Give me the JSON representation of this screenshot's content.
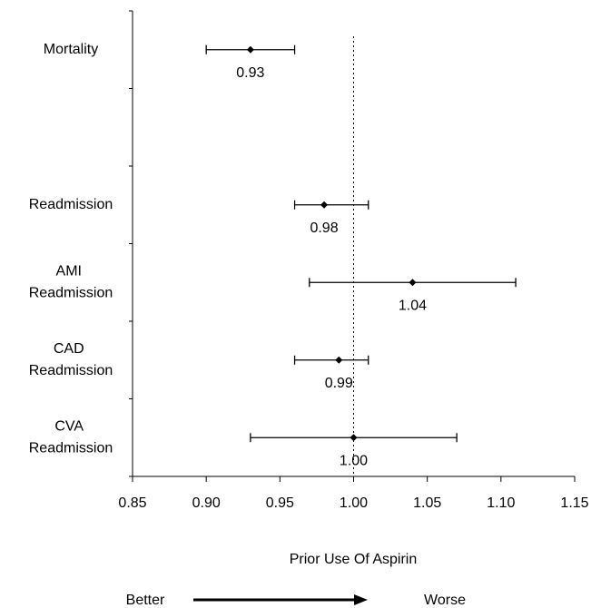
{
  "chart_data": {
    "type": "forest",
    "categories": [
      "Mortality",
      null,
      "Readmission",
      "AMI Readmission",
      "CAD Readmission",
      "CVA Readmission"
    ],
    "values": [
      0.93,
      null,
      0.98,
      1.04,
      0.99,
      1.0
    ],
    "value_labels": [
      "0.93",
      null,
      "0.98",
      "1.04",
      "0.99",
      "1.00"
    ],
    "low": [
      0.9,
      null,
      0.96,
      0.97,
      0.96,
      0.93
    ],
    "high": [
      0.96,
      null,
      1.01,
      1.11,
      1.01,
      1.07
    ],
    "color": "#000000",
    "xlim": [
      0.85,
      1.15
    ],
    "xticks": [
      0.85,
      {
        "value": 0.9,
        "label": "0.90"
      },
      0.95,
      {
        "value": 1,
        "label": "1.00"
      },
      1.05,
      {
        "value": 1.1,
        "label": "1.10"
      },
      1.15
    ],
    "reference_line": 1,
    "xlabel": "Prior Use Of Aspirin",
    "arrow_left": "Better",
    "arrow_right": "Worse"
  }
}
